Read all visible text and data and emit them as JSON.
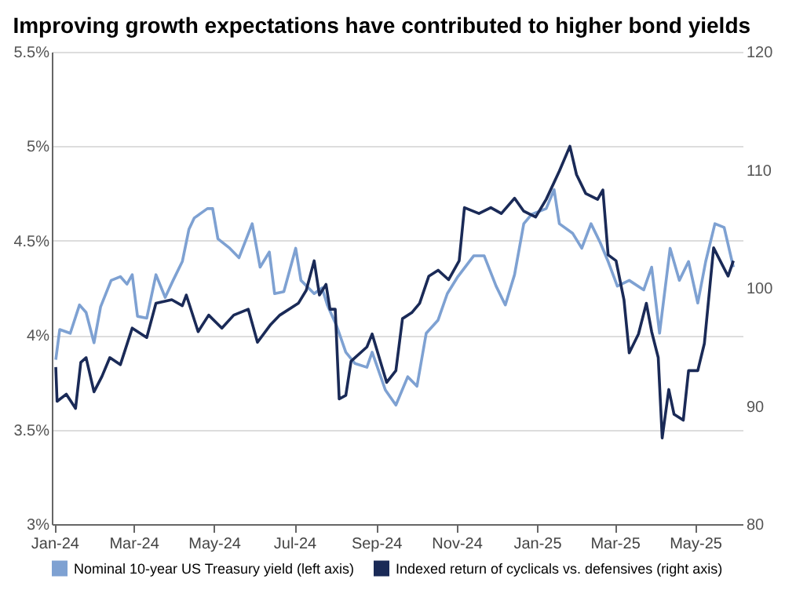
{
  "chart_data": {
    "type": "line",
    "title": "Improving growth expectations have contributed to higher bond yields",
    "xlim": [
      "2023-12-30",
      "2025-06-06"
    ],
    "xticks": [
      {
        "value": "2024-01-01",
        "label": "Jan-24"
      },
      {
        "value": "2024-03-01",
        "label": "Mar-24"
      },
      {
        "value": "2024-05-01",
        "label": "May-24"
      },
      {
        "value": "2024-07-01",
        "label": "Jul-24"
      },
      {
        "value": "2024-09-01",
        "label": "Sep-24"
      },
      {
        "value": "2024-11-01",
        "label": "Nov-24"
      },
      {
        "value": "2025-01-01",
        "label": "Jan-25"
      },
      {
        "value": "2025-03-01",
        "label": "Mar-25"
      },
      {
        "value": "2025-05-01",
        "label": "May-25"
      }
    ],
    "ylim": [
      3,
      5.5
    ],
    "yticks": [
      {
        "value": 3,
        "label": "3%"
      },
      {
        "value": 3.5,
        "label": "3.5%"
      },
      {
        "value": 4,
        "label": "4%"
      },
      {
        "value": 4.5,
        "label": "4.5%"
      },
      {
        "value": 5,
        "label": "5%"
      },
      {
        "value": 5.5,
        "label": "5.5%"
      }
    ],
    "y2lim": [
      80,
      120
    ],
    "y2ticks": [
      80,
      90,
      100,
      110,
      120
    ],
    "grid": "y",
    "legend": "bottom",
    "line_style": "solid",
    "marker": "none",
    "series": [
      {
        "name": "Nominal 10-year US Treasury yield (left axis)",
        "color": "#7ea1d2",
        "x": [
          "2024-01-02",
          "2024-01-05",
          "2024-01-13",
          "2024-01-20",
          "2024-01-25",
          "2024-01-31",
          "2024-02-05",
          "2024-02-13",
          "2024-02-20",
          "2024-02-25",
          "2024-02-29",
          "2024-03-04",
          "2024-03-11",
          "2024-03-18",
          "2024-03-25",
          "2024-03-31",
          "2024-04-07",
          "2024-04-12",
          "2024-04-16",
          "2024-04-26",
          "2024-04-30",
          "2024-05-04",
          "2024-05-13",
          "2024-05-20",
          "2024-05-30",
          "2024-06-05",
          "2024-06-12",
          "2024-06-16",
          "2024-06-23",
          "2024-07-02",
          "2024-07-06",
          "2024-07-16",
          "2024-07-22",
          "2024-07-26",
          "2024-08-02",
          "2024-08-09",
          "2024-08-16",
          "2024-08-25",
          "2024-08-29",
          "2024-09-08",
          "2024-09-16",
          "2024-09-25",
          "2024-10-02",
          "2024-10-09",
          "2024-10-18",
          "2024-10-25",
          "2024-11-02",
          "2024-11-14",
          "2024-11-22",
          "2024-12-01",
          "2024-12-08",
          "2024-12-15",
          "2024-12-22",
          "2024-12-28",
          "2025-01-08",
          "2025-01-14",
          "2025-01-18",
          "2025-01-28",
          "2025-02-04",
          "2025-02-11",
          "2025-02-18",
          "2025-02-24",
          "2025-03-03",
          "2025-03-12",
          "2025-03-23",
          "2025-03-29",
          "2025-04-04",
          "2025-04-12",
          "2025-04-19",
          "2025-04-26",
          "2025-05-03",
          "2025-05-09",
          "2025-05-16",
          "2025-05-23",
          "2025-05-30"
        ],
        "values": [
          3.87,
          4.03,
          4.01,
          4.16,
          4.12,
          3.96,
          4.15,
          4.29,
          4.31,
          4.27,
          4.32,
          4.1,
          4.09,
          4.32,
          4.2,
          4.29,
          4.39,
          4.56,
          4.62,
          4.67,
          4.67,
          4.51,
          4.46,
          4.41,
          4.59,
          4.36,
          4.44,
          4.22,
          4.23,
          4.46,
          4.29,
          4.22,
          4.25,
          4.16,
          4.05,
          3.91,
          3.85,
          3.83,
          3.91,
          3.71,
          3.63,
          3.78,
          3.73,
          4.01,
          4.08,
          4.22,
          4.31,
          4.42,
          4.42,
          4.26,
          4.16,
          4.32,
          4.59,
          4.64,
          4.67,
          4.77,
          4.59,
          4.54,
          4.46,
          4.59,
          4.49,
          4.39,
          4.26,
          4.29,
          4.24,
          4.36,
          4.01,
          4.46,
          4.29,
          4.39,
          4.17,
          4.39,
          4.59,
          4.57,
          4.36
        ]
      },
      {
        "name": "Indexed return of cyclicals vs. defensives (right axis)",
        "color": "#1a2a57",
        "axis": "y2",
        "x": [
          "2024-01-02",
          "2024-01-03",
          "2024-01-10",
          "2024-01-17",
          "2024-01-21",
          "2024-01-25",
          "2024-01-31",
          "2024-02-06",
          "2024-02-12",
          "2024-02-20",
          "2024-02-29",
          "2024-03-11",
          "2024-03-18",
          "2024-03-30",
          "2024-04-07",
          "2024-04-10",
          "2024-04-19",
          "2024-04-27",
          "2024-05-07",
          "2024-05-16",
          "2024-05-27",
          "2024-06-03",
          "2024-06-13",
          "2024-06-20",
          "2024-07-04",
          "2024-07-10",
          "2024-07-16",
          "2024-07-20",
          "2024-07-25",
          "2024-07-28",
          "2024-08-01",
          "2024-08-04",
          "2024-08-09",
          "2024-08-13",
          "2024-08-25",
          "2024-08-29",
          "2024-09-02",
          "2024-09-09",
          "2024-09-16",
          "2024-09-21",
          "2024-09-28",
          "2024-10-04",
          "2024-10-11",
          "2024-10-18",
          "2024-10-26",
          "2024-11-03",
          "2024-11-07",
          "2024-11-18",
          "2024-11-27",
          "2024-12-05",
          "2024-12-15",
          "2024-12-22",
          "2024-12-31",
          "2025-01-08",
          "2025-01-18",
          "2025-01-26",
          "2025-01-31",
          "2025-02-07",
          "2025-02-16",
          "2025-02-20",
          "2025-02-24",
          "2025-03-02",
          "2025-03-08",
          "2025-03-12",
          "2025-03-19",
          "2025-03-25",
          "2025-03-29",
          "2025-04-03",
          "2025-04-06",
          "2025-04-11",
          "2025-04-15",
          "2025-04-22",
          "2025-04-26",
          "2025-05-03",
          "2025-05-08",
          "2025-05-15",
          "2025-05-20",
          "2025-05-26",
          "2025-05-30"
        ],
        "values": [
          93.3,
          90.4,
          91.0,
          89.8,
          93.7,
          94.1,
          91.2,
          92.5,
          94.1,
          93.5,
          96.6,
          95.8,
          98.7,
          99.0,
          98.5,
          99.4,
          96.3,
          97.7,
          96.6,
          97.7,
          98.2,
          95.4,
          96.9,
          97.7,
          98.7,
          99.8,
          102.3,
          99.4,
          100.3,
          98.2,
          98.2,
          90.6,
          90.9,
          93.8,
          95.0,
          96.1,
          94.6,
          92.0,
          93.0,
          97.4,
          97.9,
          98.7,
          101.0,
          101.5,
          100.7,
          102.3,
          106.8,
          106.3,
          106.8,
          106.3,
          107.6,
          106.5,
          106.0,
          107.5,
          109.9,
          112.0,
          109.6,
          108.0,
          107.5,
          108.3,
          102.8,
          102.3,
          99.0,
          94.5,
          96.1,
          98.7,
          96.3,
          94.1,
          87.3,
          91.4,
          89.3,
          88.8,
          93.0,
          93.0,
          95.3,
          103.4,
          102.3,
          101.0,
          102.3
        ]
      }
    ]
  }
}
